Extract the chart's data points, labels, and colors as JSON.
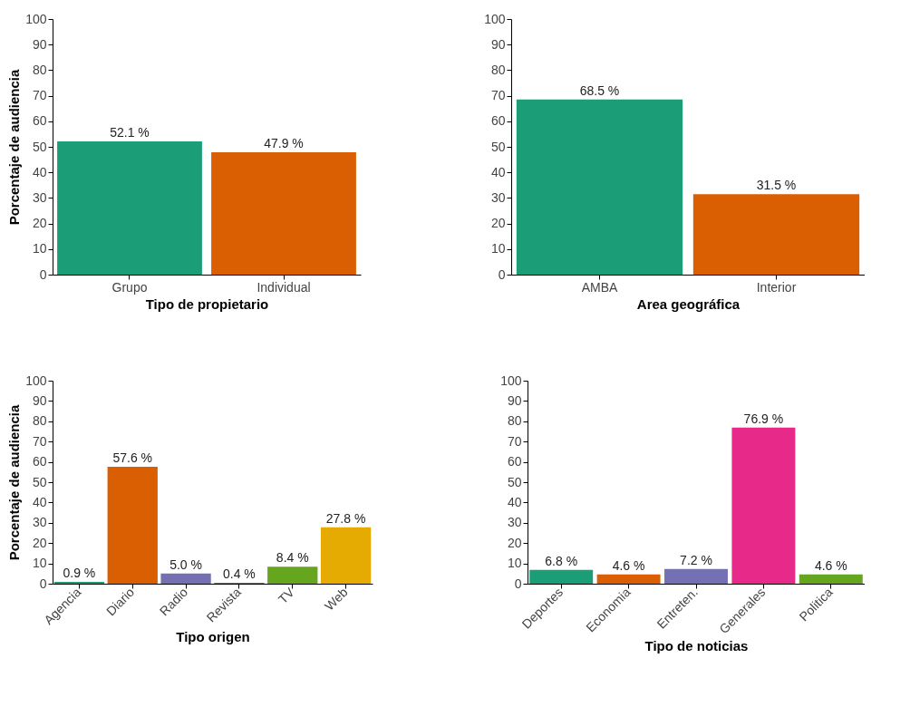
{
  "chart_data": [
    {
      "type": "bar",
      "ylabel": "Porcentaje de audiencia",
      "xlabel": "Tipo de propietario",
      "categories": [
        "Grupo",
        "Individual"
      ],
      "values": [
        52.1,
        47.9
      ],
      "colors": [
        "#1b9e77",
        "#d95f02"
      ],
      "value_labels": [
        "52.1 %",
        "47.9 %"
      ],
      "ylim": [
        0,
        100
      ],
      "yticks": [
        0,
        10,
        20,
        30,
        40,
        50,
        60,
        70,
        80,
        90,
        100
      ],
      "grid": false
    },
    {
      "type": "bar",
      "xlabel": "Area geográfica",
      "categories": [
        "AMBA",
        "Interior"
      ],
      "values": [
        68.5,
        31.5
      ],
      "colors": [
        "#1b9e77",
        "#d95f02"
      ],
      "value_labels": [
        "68.5 %",
        "31.5 %"
      ],
      "ylim": [
        0,
        100
      ],
      "yticks": [
        0,
        10,
        20,
        30,
        40,
        50,
        60,
        70,
        80,
        90,
        100
      ],
      "grid": false
    },
    {
      "type": "bar",
      "ylabel": "Porcentaje de audiencia",
      "xlabel": "Tipo origen",
      "categories": [
        "Agencia",
        "Diario",
        "Radio",
        "Revista",
        "TV",
        "Web"
      ],
      "values": [
        0.9,
        57.6,
        5.0,
        0.4,
        8.4,
        27.8
      ],
      "colors": [
        "#1b9e77",
        "#d95f02",
        "#7570b3",
        "#e7298a",
        "#66a61e",
        "#e6ab02"
      ],
      "value_labels": [
        "0.9 %",
        "57.6 %",
        "5.0 %",
        "0.4 %",
        "8.4 %",
        "27.8 %"
      ],
      "ylim": [
        0,
        100
      ],
      "yticks": [
        0,
        10,
        20,
        30,
        40,
        50,
        60,
        70,
        80,
        90,
        100
      ],
      "grid": false
    },
    {
      "type": "bar",
      "xlabel": "Tipo de noticias",
      "categories": [
        "Deportes",
        "Economia",
        "Entreten.",
        "Generales",
        "Politica"
      ],
      "values": [
        6.8,
        4.6,
        7.2,
        76.9,
        4.6
      ],
      "colors": [
        "#1b9e77",
        "#d95f02",
        "#7570b3",
        "#e7298a",
        "#66a61e"
      ],
      "value_labels": [
        "6.8 %",
        "4.6 %",
        "7.2 %",
        "76.9 %",
        "4.6 %"
      ],
      "ylim": [
        0,
        100
      ],
      "yticks": [
        0,
        10,
        20,
        30,
        40,
        50,
        60,
        70,
        80,
        90,
        100
      ],
      "grid": false
    }
  ]
}
